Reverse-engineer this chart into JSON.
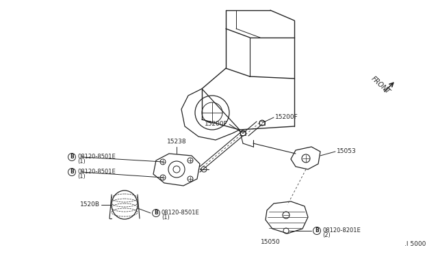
{
  "bg_color": "#ffffff",
  "figure_width": 6.4,
  "figure_height": 3.72,
  "dpi": 100,
  "dark": "#222222",
  "gray": "#555555",
  "part_number": ".I 5000",
  "front_label": "FRONT",
  "label_15200F_top": "15200F",
  "label_15200F_mid": "15200F",
  "label_15238": "15238",
  "label_1520B": "1520B",
  "label_15053": "15053",
  "label_15050": "15050",
  "label_b1": "B",
  "label_b2": "B",
  "label_b3": "B",
  "label_b4": "B",
  "label_08120_8501E": "08120-8501E",
  "label_08120_8201E": "08120-8201E",
  "label_1": "(1)",
  "label_2": "(2)"
}
